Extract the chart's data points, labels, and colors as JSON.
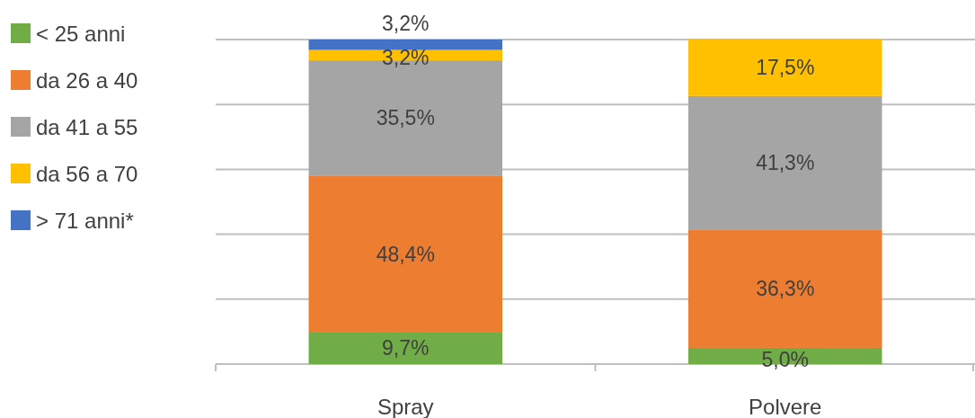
{
  "chart_data": {
    "type": "bar",
    "stacked": true,
    "categories": [
      "Spray",
      "Polvere"
    ],
    "series": [
      {
        "name": "< 25 anni",
        "color": "#70ad47",
        "values": [
          9.7,
          5.0
        ],
        "value_labels": [
          "9,7%",
          "5,0%"
        ]
      },
      {
        "name": "da 26 a 40",
        "color": "#ed7d31",
        "values": [
          48.4,
          36.3
        ],
        "value_labels": [
          "48,4%",
          "36,3%"
        ]
      },
      {
        "name": "da 41 a 55",
        "color": "#a5a5a5",
        "values": [
          35.5,
          41.3
        ],
        "value_labels": [
          "35,5%",
          "41,3%"
        ]
      },
      {
        "name": "da 56 a 70",
        "color": "#ffc000",
        "values": [
          3.2,
          17.5
        ],
        "value_labels": [
          "3,2%",
          "17,5%"
        ]
      },
      {
        "name": "> 71 anni*",
        "color": "#4472c4",
        "values": [
          3.2,
          null
        ],
        "value_labels": [
          "3,2%",
          null
        ]
      }
    ],
    "ylim": [
      0,
      100
    ],
    "yticks": [
      {
        "value": 0,
        "label": null
      },
      {
        "value": 20,
        "label": null
      },
      {
        "value": 40,
        "label": null
      },
      {
        "value": 60,
        "label": null
      },
      {
        "value": 80,
        "label": null
      },
      {
        "value": 100,
        "label": null
      }
    ],
    "grid": "y",
    "legend": "left",
    "tick_labels": "x"
  }
}
